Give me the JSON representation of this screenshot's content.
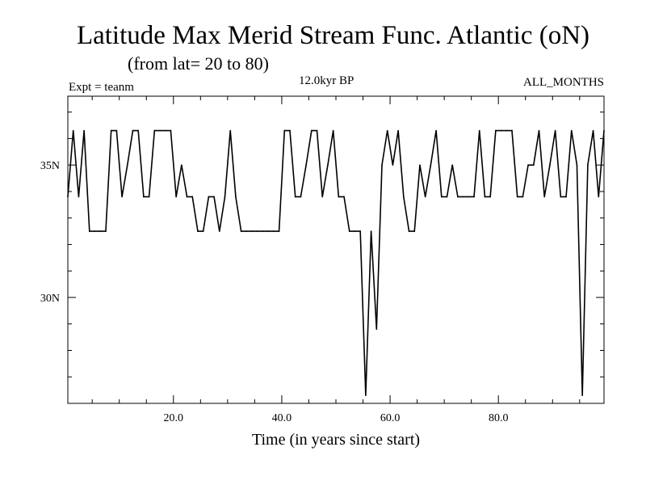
{
  "chart_data": {
    "type": "line",
    "title": "Latitude Max Merid Stream Func. Atlantic (oN)",
    "subtitle": "(from lat= 20 to 80)",
    "annotations": {
      "left": "Expt = teanm",
      "center": "12.0kyr BP",
      "right": "ALL_MONTHS"
    },
    "xlabel": "Time (in years since start)",
    "ylabel": "",
    "xlim": [
      0.5,
      99.5
    ],
    "ylim": [
      26,
      37.6
    ],
    "x_ticks": [
      20,
      40,
      60,
      80
    ],
    "x_tick_labels": [
      "20.0",
      "40.0",
      "60.0",
      "80.0"
    ],
    "y_ticks": [
      30,
      35
    ],
    "y_tick_labels": [
      "30N",
      "35N"
    ],
    "x_minor_step": 5,
    "y_minor_step": 1,
    "series": [
      {
        "name": "Latitude Max Merid Stream Func",
        "color": "#000000",
        "x": [
          0.5,
          1.5,
          2.5,
          3.5,
          4.5,
          5.5,
          6.5,
          7.5,
          8.5,
          9.5,
          10.5,
          11.5,
          12.5,
          13.5,
          14.5,
          15.5,
          16.5,
          17.5,
          18.5,
          19.5,
          20.5,
          21.5,
          22.5,
          23.5,
          24.5,
          25.5,
          26.5,
          27.5,
          28.5,
          29.5,
          30.5,
          31.5,
          32.5,
          33.5,
          34.5,
          35.5,
          36.5,
          37.5,
          38.5,
          39.5,
          40.5,
          41.5,
          42.5,
          43.5,
          44.5,
          45.5,
          46.5,
          47.5,
          48.5,
          49.5,
          50.5,
          51.5,
          52.5,
          53.5,
          54.5,
          55.5,
          56.5,
          57.5,
          58.5,
          59.5,
          60.5,
          61.5,
          62.5,
          63.5,
          64.5,
          65.5,
          66.5,
          67.5,
          68.5,
          69.5,
          70.5,
          71.5,
          72.5,
          73.5,
          74.5,
          75.5,
          76.5,
          77.5,
          78.5,
          79.5,
          80.5,
          81.5,
          82.5,
          83.5,
          84.5,
          85.5,
          86.5,
          87.5,
          88.5,
          89.5,
          90.5,
          91.5,
          92.5,
          93.5,
          94.5,
          95.5,
          96.5,
          97.5,
          98.5,
          99.5
        ],
        "values": [
          33.8,
          36.3,
          33.8,
          36.3,
          32.5,
          32.5,
          32.5,
          32.5,
          36.3,
          36.3,
          33.8,
          35.0,
          36.3,
          36.3,
          33.8,
          33.8,
          36.3,
          36.3,
          36.3,
          36.3,
          33.8,
          35.0,
          33.8,
          33.8,
          32.5,
          32.5,
          33.8,
          33.8,
          32.5,
          33.8,
          36.3,
          33.8,
          32.5,
          32.5,
          32.5,
          32.5,
          32.5,
          32.5,
          32.5,
          32.5,
          36.3,
          36.3,
          33.8,
          33.8,
          35.0,
          36.3,
          36.3,
          33.8,
          35.0,
          36.3,
          33.8,
          33.8,
          32.5,
          32.5,
          32.5,
          26.3,
          32.5,
          28.8,
          35.0,
          36.3,
          35.0,
          36.3,
          33.8,
          32.5,
          32.5,
          35.0,
          33.8,
          35.0,
          36.3,
          33.8,
          33.8,
          35.0,
          33.8,
          33.8,
          33.8,
          33.8,
          36.3,
          33.8,
          33.8,
          36.3,
          36.3,
          36.3,
          36.3,
          33.8,
          33.8,
          35.0,
          35.0,
          36.3,
          33.8,
          35.0,
          36.3,
          33.8,
          33.8,
          36.3,
          35.0,
          26.3,
          35.0,
          36.3,
          33.8,
          36.3
        ]
      }
    ]
  }
}
